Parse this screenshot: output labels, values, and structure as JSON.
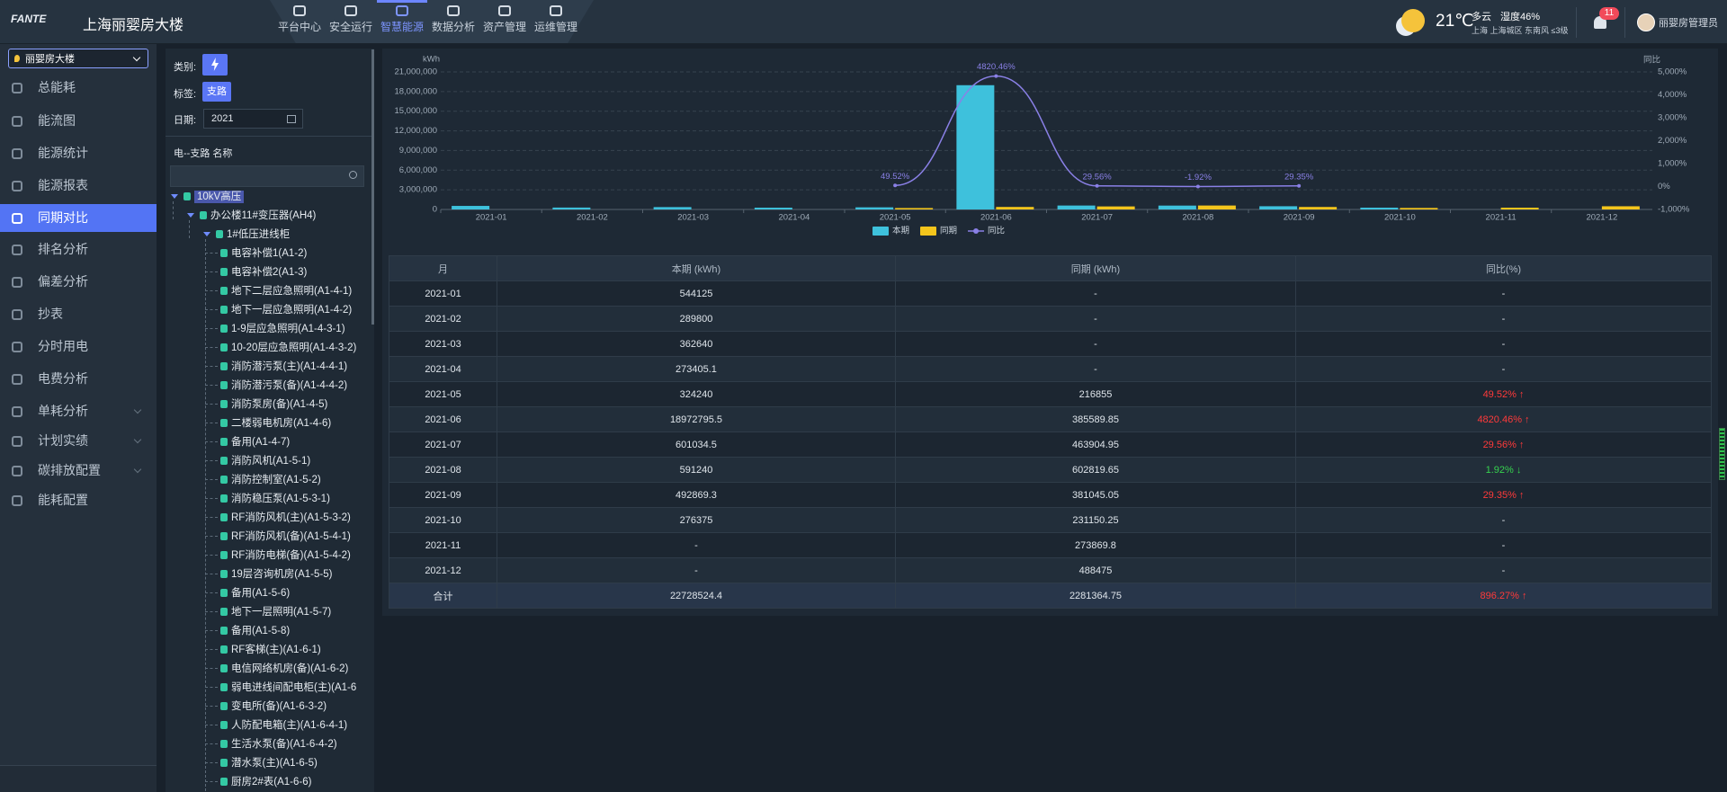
{
  "header": {
    "logo": "FANTE",
    "title": "上海丽婴房大楼",
    "nav": [
      "平台中心",
      "安全运行",
      "智慧能源",
      "数据分析",
      "资产管理",
      "运维管理"
    ],
    "weather": {
      "temp": "21℃",
      "desc": "多云",
      "humidity": "湿度46%",
      "location": "上海 上海城区 东南风 ≤3级"
    },
    "notifications": 11,
    "user": "丽婴房管理员"
  },
  "sidebar": {
    "building": "丽婴房大楼",
    "menu": [
      "总能耗",
      "能流图",
      "能源统计",
      "能源报表",
      "同期对比",
      "排名分析",
      "偏差分析",
      "抄表",
      "分时用电",
      "电费分析",
      "单耗分析",
      "计划实绩",
      "碳排放配置",
      "能耗配置"
    ]
  },
  "filter": {
    "category_label": "类别:",
    "tag_label": "标签:",
    "tag": "支路",
    "date_label": "日期:",
    "date": "2021",
    "tree_title": "电--支路 名称"
  },
  "tree": {
    "root": "10kV高压",
    "level1": "办公楼11#变压器(AH4)",
    "level2": "1#低压进线柜",
    "leaves": [
      "电容补偿1(A1-2)",
      "电容补偿2(A1-3)",
      "地下二层应急照明(A1-4-1)",
      "地下一层应急照明(A1-4-2)",
      "1-9层应急照明(A1-4-3-1)",
      "10-20层应急照明(A1-4-3-2)",
      "消防潜污泵(主)(A1-4-4-1)",
      "消防潜污泵(备)(A1-4-4-2)",
      "消防泵房(备)(A1-4-5)",
      "二楼弱电机房(A1-4-6)",
      "备用(A1-4-7)",
      "消防风机(A1-5-1)",
      "消防控制室(A1-5-2)",
      "消防稳压泵(A1-5-3-1)",
      "RF消防风机(主)(A1-5-3-2)",
      "RF消防风机(备)(A1-5-4-1)",
      "RF消防电梯(备)(A1-5-4-2)",
      "19层咨询机房(A1-5-5)",
      "备用(A1-5-6)",
      "地下一层照明(A1-5-7)",
      "备用(A1-5-8)",
      "RF客梯(主)(A1-6-1)",
      "电信网络机房(备)(A1-6-2)",
      "弱电进线间配电柜(主)(A1-6",
      "变电所(备)(A1-6-3-2)",
      "人防配电箱(主)(A1-6-4-1)",
      "生活水泵(备)(A1-6-4-2)",
      "潜水泵(主)(A1-6-5)",
      "厨房2#表(A1-6-6)"
    ]
  },
  "chart_data": {
    "type": "bar",
    "y_label": "kWh",
    "y2_label": "同比",
    "categories": [
      "2021-01",
      "2021-02",
      "2021-03",
      "2021-04",
      "2021-05",
      "2021-06",
      "2021-07",
      "2021-08",
      "2021-09",
      "2021-10",
      "2021-11",
      "2021-12"
    ],
    "series": [
      {
        "name": "本期",
        "color": "#3ec1dc",
        "values": [
          544125,
          289800,
          362640,
          273405.1,
          324240,
          18972795.5,
          601034.5,
          591240,
          492869.3,
          276375,
          null,
          null
        ]
      },
      {
        "name": "同期",
        "color": "#f4c51c",
        "values": [
          null,
          null,
          null,
          null,
          216855,
          385589.85,
          463904.95,
          602819.65,
          381045.05,
          231150.25,
          273869.8,
          488475
        ]
      },
      {
        "name": "同比",
        "type": "line",
        "axis": "y2",
        "color": "#8a80e6",
        "values": [
          null,
          null,
          null,
          null,
          49.52,
          4820.46,
          29.56,
          -1.92,
          29.35,
          null,
          null,
          null
        ],
        "value_labels": [
          null,
          null,
          null,
          null,
          "49.52%",
          "4820.46%",
          "29.56%",
          "-1.92%",
          "29.35%",
          null,
          null,
          null
        ]
      }
    ],
    "ylim": [
      0,
      21000000
    ],
    "yticks": [
      0,
      {
        "value": 3000000,
        "label": "3,000,000"
      },
      {
        "value": 6000000,
        "label": "6,000,000"
      },
      {
        "value": 9000000,
        "label": "9,000,000"
      },
      {
        "value": 12000000,
        "label": "12,000,000"
      },
      {
        "value": 15000000,
        "label": "15,000,000"
      },
      {
        "value": 18000000,
        "label": "18,000,000"
      },
      {
        "value": 21000000,
        "label": "21,000,000"
      }
    ],
    "y2lim": [
      -1000,
      5000
    ],
    "y2ticks": [
      {
        "value": -1000,
        "label": "-1,000%"
      },
      {
        "value": 0,
        "label": "0%"
      },
      {
        "value": 1000,
        "label": "1,000%"
      },
      {
        "value": 2000,
        "label": "2,000%"
      },
      {
        "value": 3000,
        "label": "3,000%"
      },
      {
        "value": 4000,
        "label": "4,000%"
      },
      {
        "value": 5000,
        "label": "5,000%"
      }
    ],
    "grid": true,
    "legend": "bottom"
  },
  "table": {
    "columns": [
      "月",
      "本期 (kWh)",
      "同期 (kWh)",
      "同比(%)"
    ],
    "rows": [
      [
        "2021-01",
        544125,
        "-",
        "-"
      ],
      [
        "2021-02",
        289800,
        "-",
        "-"
      ],
      [
        "2021-03",
        362640,
        "-",
        "-"
      ],
      [
        "2021-04",
        273405.1,
        "-",
        "-"
      ],
      [
        "2021-05",
        324240,
        216855,
        "49.52% ↑"
      ],
      [
        "2021-06",
        18972795.5,
        385589.85,
        "4820.46% ↑"
      ],
      [
        "2021-07",
        601034.5,
        463904.95,
        "29.56% ↑"
      ],
      [
        "2021-08",
        591240,
        602819.65,
        "1.92% ↓"
      ],
      [
        "2021-09",
        492869.3,
        381045.05,
        "29.35% ↑"
      ],
      [
        "2021-10",
        276375,
        231150.25,
        "-"
      ],
      [
        "2021-11",
        "-",
        273869.8,
        "-"
      ],
      [
        "2021-12",
        "-",
        488475,
        "-"
      ],
      [
        "合计",
        22728524.4,
        2281364.75,
        "896.27% ↑"
      ]
    ]
  }
}
